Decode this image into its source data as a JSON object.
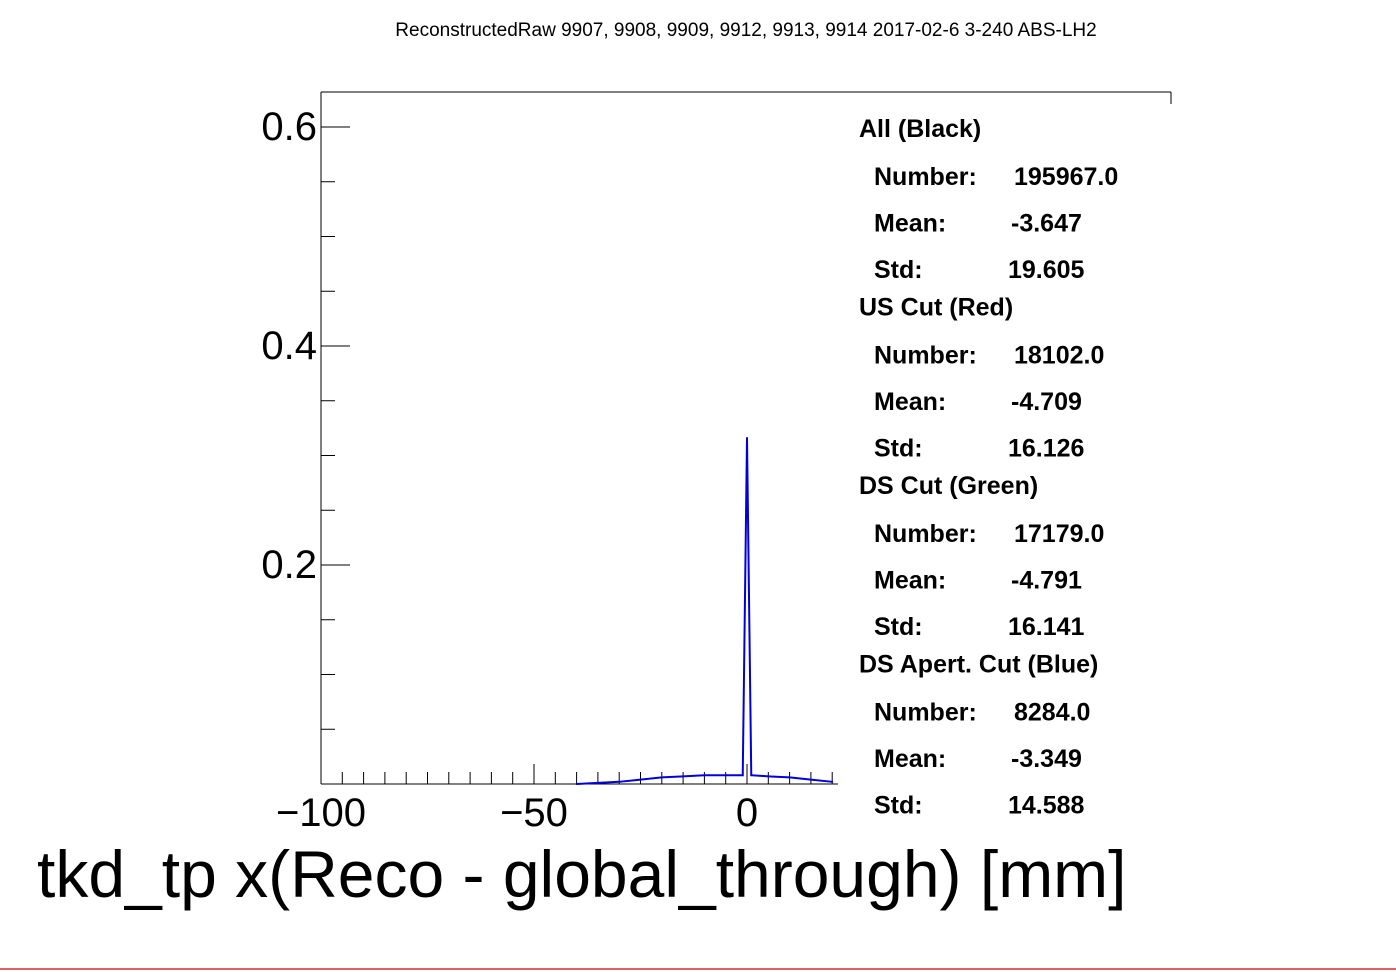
{
  "chart_data": {
    "type": "line",
    "title": "ReconstructedRaw 9907, 9908, 9909, 9912, 9913, 9914 2017-02-6 3-240 ABS-LH2",
    "xlabel": "tkd_tp x(Reco - global_through) [mm]",
    "ylabel": "",
    "xlim": [
      -105,
      20
    ],
    "ylim": [
      0,
      0.63
    ],
    "x_ticks": [
      -100,
      -50,
      0
    ],
    "x_tick_labels": [
      "−100",
      "−50",
      "0"
    ],
    "y_ticks": [
      0.2,
      0.4,
      0.6
    ],
    "y_tick_labels": [
      "0.2",
      "0.4",
      "0.6"
    ],
    "series": [
      {
        "name": "DS Apert. Cut (Blue)",
        "color": "#0000dd",
        "x": [
          -40,
          -35,
          -30,
          -25,
          -20,
          -15,
          -10,
          -5,
          -1,
          0,
          1,
          5,
          10,
          15,
          20
        ],
        "y": [
          0.0,
          0.001,
          0.002,
          0.004,
          0.006,
          0.007,
          0.008,
          0.008,
          0.008,
          0.316,
          0.008,
          0.007,
          0.006,
          0.004,
          0.002
        ]
      }
    ],
    "stats": [
      {
        "header": "All (Black)",
        "rows": [
          {
            "label": "Number:",
            "value": "195967.0"
          },
          {
            "label": "Mean:",
            "value": "-3.647"
          },
          {
            "label": "Std:",
            "value": "19.605"
          }
        ]
      },
      {
        "header": "US Cut (Red)",
        "rows": [
          {
            "label": "Number:",
            "value": "18102.0"
          },
          {
            "label": "Mean:",
            "value": "-4.709"
          },
          {
            "label": "Std:",
            "value": "16.126"
          }
        ]
      },
      {
        "header": "DS Cut (Green)",
        "rows": [
          {
            "label": "Number:",
            "value": "17179.0"
          },
          {
            "label": "Mean:",
            "value": "-4.791"
          },
          {
            "label": "Std:",
            "value": "16.141"
          }
        ]
      },
      {
        "header": "DS Apert. Cut (Blue)",
        "rows": [
          {
            "label": "Number:",
            "value": "8284.0"
          },
          {
            "label": "Mean:",
            "value": "-3.349"
          },
          {
            "label": "Std:",
            "value": "14.588"
          }
        ]
      }
    ]
  }
}
